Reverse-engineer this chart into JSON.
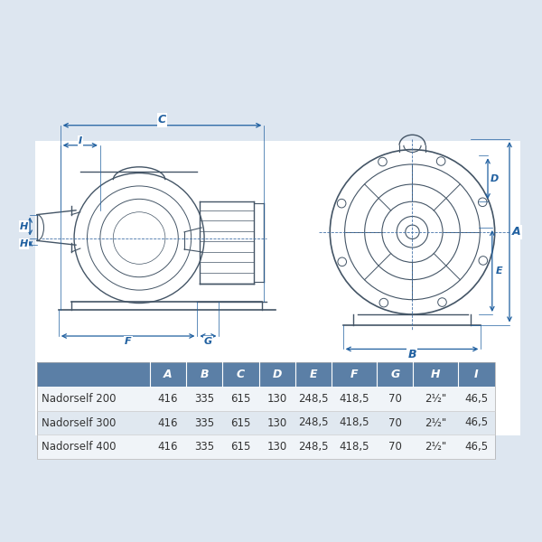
{
  "bg_color": "#dde6f0",
  "white_bg": "#ffffff",
  "blue_dim": "#4472a8",
  "table_header_bg": "#5b7fa6",
  "table_header_text": "#ffffff",
  "table_row_odd": "#f0f4f8",
  "table_row_even": "#e0e8f0",
  "table_text": "#333333",
  "dim_color": "#2060a0",
  "columns": [
    "",
    "A",
    "B",
    "C",
    "D",
    "E",
    "F",
    "G",
    "H",
    "I"
  ],
  "rows": [
    [
      "Nadorself 200",
      "416",
      "335",
      "615",
      "130",
      "248,5",
      "418,5",
      "70",
      "2½\"",
      "46,5"
    ],
    [
      "Nadorself 300",
      "416",
      "335",
      "615",
      "130",
      "248,5",
      "418,5",
      "70",
      "2½\"",
      "46,5"
    ],
    [
      "Nadorself 400",
      "416",
      "335",
      "615",
      "130",
      "248,5",
      "418,5",
      "70",
      "2½\"",
      "46,5"
    ]
  ],
  "fig_width": 6.0,
  "fig_height": 6.0,
  "dpi": 100
}
